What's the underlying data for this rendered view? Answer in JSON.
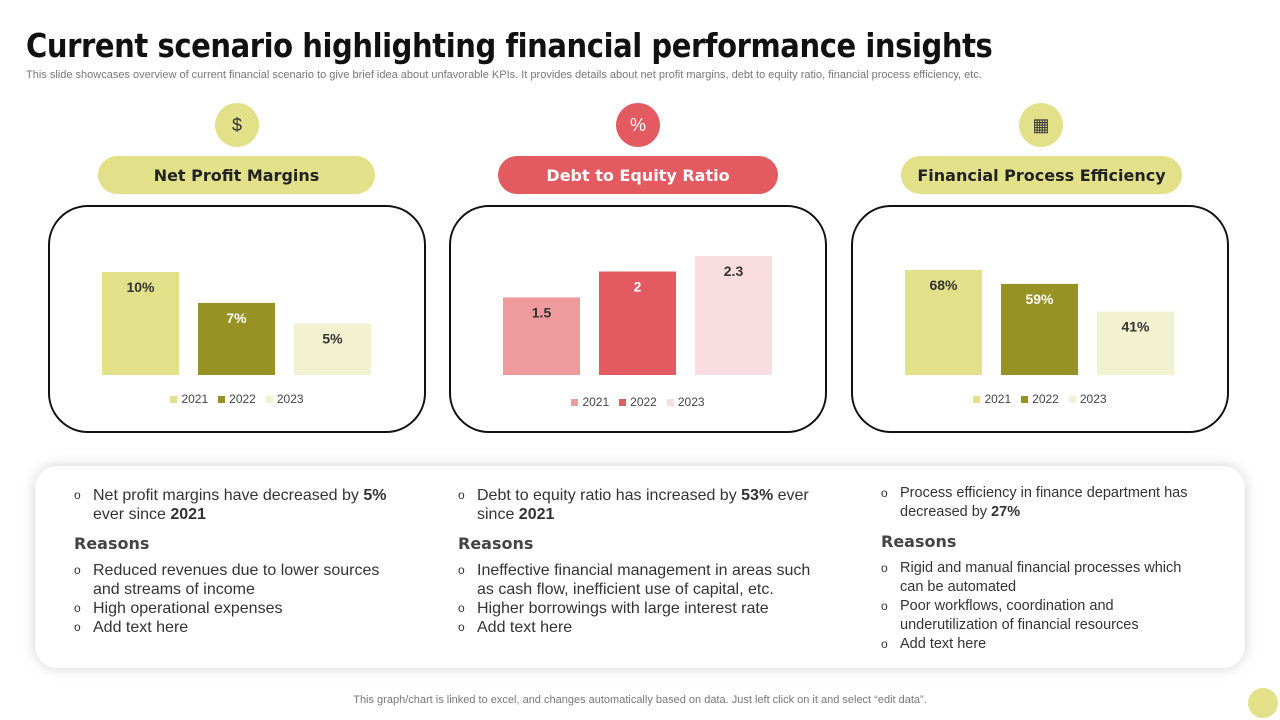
{
  "title": "Current scenario highlighting financial performance insights",
  "subtitle": "This slide showcases overview of current financial scenario to give brief idea about unfavorable KPIs. It provides details about net profit margins, debt to equity ratio, financial process efficiency, etc.",
  "colors": {
    "olive_light": "#e3e08a",
    "olive_dark": "#969224",
    "olive_pale": "#f3f2d0",
    "red_light": "#ef9a9d",
    "red": "#e35b61",
    "red_pale": "#f9dde0"
  },
  "chart_data": [
    {
      "type": "bar",
      "title": "Net Profit Margins",
      "icon": "money-bag-icon",
      "categories": [
        "2021",
        "2022",
        "2023"
      ],
      "values": [
        10,
        7,
        5
      ],
      "labels": [
        "10%",
        "7%",
        "5%"
      ],
      "colors": [
        "#e3e08a",
        "#969224",
        "#f3f2d0"
      ],
      "label_colors": [
        "#333",
        "#fff",
        "#333"
      ]
    },
    {
      "type": "bar",
      "title": "Debt to Equity Ratio",
      "icon": "percent-icon",
      "categories": [
        "2021",
        "2022",
        "2023"
      ],
      "values": [
        1.5,
        2,
        2.3
      ],
      "labels": [
        "1.5",
        "2",
        "2.3"
      ],
      "colors": [
        "#ef9a9d",
        "#e35b61",
        "#f9dde0"
      ],
      "label_colors": [
        "#333",
        "#fff",
        "#333"
      ]
    },
    {
      "type": "bar",
      "title": "Financial Process Efficiency",
      "icon": "calculator-icon",
      "categories": [
        "2021",
        "2022",
        "2023"
      ],
      "values": [
        68,
        59,
        41
      ],
      "labels": [
        "68%",
        "59%",
        "41%"
      ],
      "colors": [
        "#e3e08a",
        "#969224",
        "#f3f2d0"
      ],
      "label_colors": [
        "#333",
        "#fff",
        "#333"
      ]
    }
  ],
  "insights": [
    {
      "head": [
        "Net profit margins have decreased by ",
        "5%",
        " ever since ",
        "2021"
      ],
      "reasons_label": "Reasons",
      "reasons": [
        "Reduced revenues  due to lower sources and streams of income",
        "High operational expenses",
        "Add text here"
      ]
    },
    {
      "head": [
        "Debt to equity ratio has increased by ",
        "53%",
        " ever since ",
        "2021"
      ],
      "reasons_label": "Reasons",
      "reasons": [
        "Ineffective financial management in areas such as cash flow, inefficient use of capital, etc.",
        "Higher borrowings with large interest rate",
        "Add text here"
      ]
    },
    {
      "head": [
        "Process efficiency in finance department has decreased by ",
        "27%",
        "",
        ""
      ],
      "reasons_label": "Reasons",
      "reasons": [
        "Rigid and manual financial processes which can be automated",
        "Poor workflows, coordination and underutilization of financial resources",
        "Add text here"
      ]
    }
  ],
  "bullet": "o",
  "footer": "This graph/chart is linked to excel, and changes automatically based on data. Just left click on it and select “edit data”."
}
